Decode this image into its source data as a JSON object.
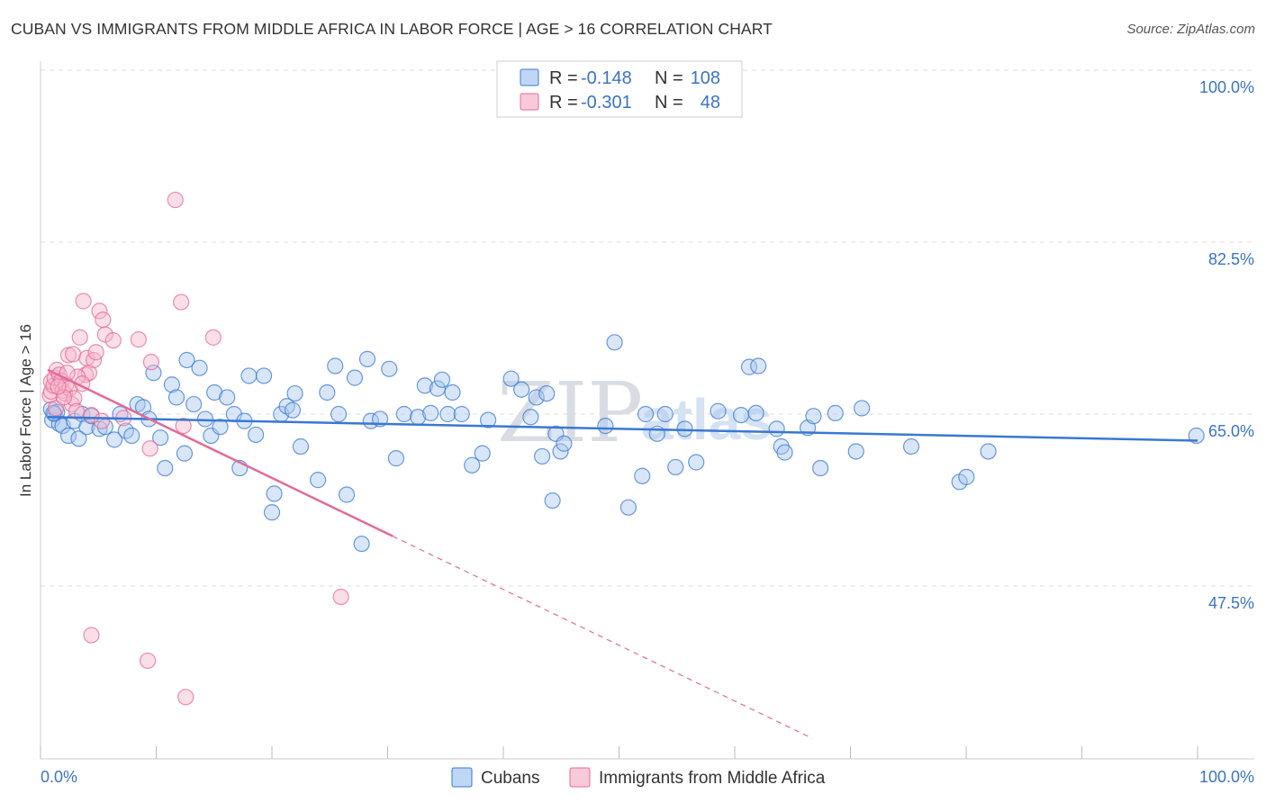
{
  "header": {
    "title": "CUBAN VS IMMIGRANTS FROM MIDDLE AFRICA IN LABOR FORCE | AGE > 16 CORRELATION CHART",
    "source": "Source: ZipAtlas.com"
  },
  "colors": {
    "blue": "#3a78d4",
    "blue_fill": "#a9c8f0",
    "pink": "#e46a96",
    "pink_fill": "#f6b7cb",
    "grid": "#dddddd",
    "axis_label": "#3b73c8"
  },
  "legend": {
    "r_label": "R =",
    "n_label": "N =",
    "rows": [
      {
        "r": "-0.148",
        "n": "108"
      },
      {
        "r": "-0.301",
        "n": "48"
      }
    ]
  },
  "watermark": {
    "zip": "ZIP",
    "atlas": "atlas"
  },
  "chart_data": {
    "type": "scatter",
    "title": "CUBAN VS IMMIGRANTS FROM MIDDLE AFRICA IN LABOR FORCE | AGE > 16 CORRELATION CHART",
    "xlabel": "",
    "ylabel": "In Labor Force | Age > 16",
    "xlim": [
      0,
      100
    ],
    "ylim": [
      32,
      102
    ],
    "x_tick_labels": [
      "0.0%",
      "100.0%"
    ],
    "y_ticks": [
      47.5,
      65.0,
      82.5,
      100.0
    ],
    "y_tick_labels": [
      "47.5%",
      "65.0%",
      "82.5%",
      "100.0%"
    ],
    "grid": true,
    "series": [
      {
        "name": "Cubans",
        "color": "#3a78d4",
        "r": -0.148,
        "n": 108,
        "trend": {
          "x0": 0.0,
          "y0": 64.7,
          "x1": 100.0,
          "y1": 62.3,
          "dashed_from": null
        },
        "points": [
          [
            0.3,
            65.5
          ],
          [
            0.4,
            64.4
          ],
          [
            0.6,
            65.0
          ],
          [
            0.8,
            65.2
          ],
          [
            1.0,
            64.0
          ],
          [
            1.3,
            63.8
          ],
          [
            1.8,
            62.8
          ],
          [
            2.3,
            64.3
          ],
          [
            2.7,
            62.5
          ],
          [
            3.0,
            65.0
          ],
          [
            3.4,
            63.7
          ],
          [
            3.8,
            64.8
          ],
          [
            4.5,
            63.5
          ],
          [
            5.0,
            63.7
          ],
          [
            5.8,
            62.4
          ],
          [
            6.3,
            65.0
          ],
          [
            6.8,
            63.3
          ],
          [
            7.3,
            62.8
          ],
          [
            7.8,
            66.0
          ],
          [
            8.3,
            65.7
          ],
          [
            8.8,
            64.5
          ],
          [
            9.2,
            69.2
          ],
          [
            9.8,
            62.6
          ],
          [
            10.2,
            59.5
          ],
          [
            10.8,
            68.0
          ],
          [
            11.2,
            66.7
          ],
          [
            11.9,
            61.0
          ],
          [
            12.1,
            70.5
          ],
          [
            12.7,
            66.0
          ],
          [
            13.2,
            69.7
          ],
          [
            13.7,
            64.5
          ],
          [
            14.2,
            62.8
          ],
          [
            14.5,
            67.2
          ],
          [
            15.0,
            63.7
          ],
          [
            15.6,
            66.7
          ],
          [
            16.2,
            65.0
          ],
          [
            16.7,
            59.5
          ],
          [
            17.1,
            64.3
          ],
          [
            17.5,
            68.9
          ],
          [
            18.1,
            62.9
          ],
          [
            18.8,
            68.9
          ],
          [
            19.5,
            55.0
          ],
          [
            19.7,
            56.9
          ],
          [
            20.3,
            65.0
          ],
          [
            20.8,
            65.8
          ],
          [
            21.3,
            65.4
          ],
          [
            21.5,
            67.1
          ],
          [
            22.0,
            61.7
          ],
          [
            23.5,
            58.3
          ],
          [
            24.3,
            67.2
          ],
          [
            25.0,
            69.9
          ],
          [
            25.3,
            65.0
          ],
          [
            26.0,
            56.8
          ],
          [
            26.7,
            68.7
          ],
          [
            27.3,
            51.8
          ],
          [
            27.8,
            70.6
          ],
          [
            28.1,
            64.3
          ],
          [
            28.9,
            64.5
          ],
          [
            29.7,
            69.6
          ],
          [
            30.3,
            60.5
          ],
          [
            31.0,
            65.0
          ],
          [
            32.2,
            64.7
          ],
          [
            32.8,
            67.9
          ],
          [
            33.3,
            65.1
          ],
          [
            33.9,
            67.6
          ],
          [
            34.3,
            68.5
          ],
          [
            34.8,
            65.0
          ],
          [
            35.2,
            67.2
          ],
          [
            36.0,
            65.0
          ],
          [
            36.9,
            59.8
          ],
          [
            37.8,
            61.0
          ],
          [
            38.3,
            64.4
          ],
          [
            40.3,
            68.6
          ],
          [
            41.2,
            67.5
          ],
          [
            42.0,
            64.7
          ],
          [
            42.5,
            66.7
          ],
          [
            43.0,
            60.7
          ],
          [
            43.4,
            67.1
          ],
          [
            43.9,
            56.2
          ],
          [
            44.2,
            63.0
          ],
          [
            44.6,
            61.2
          ],
          [
            44.9,
            62.0
          ],
          [
            48.5,
            63.8
          ],
          [
            49.3,
            72.3
          ],
          [
            50.5,
            55.5
          ],
          [
            51.7,
            58.7
          ],
          [
            52.0,
            65.0
          ],
          [
            53.0,
            63.0
          ],
          [
            53.7,
            65.0
          ],
          [
            54.6,
            59.6
          ],
          [
            55.4,
            63.5
          ],
          [
            56.4,
            60.1
          ],
          [
            58.3,
            65.3
          ],
          [
            60.3,
            64.9
          ],
          [
            61.0,
            69.8
          ],
          [
            61.6,
            65.1
          ],
          [
            61.8,
            69.9
          ],
          [
            63.4,
            63.5
          ],
          [
            63.8,
            61.7
          ],
          [
            64.1,
            61.1
          ],
          [
            66.1,
            63.6
          ],
          [
            66.6,
            64.8
          ],
          [
            67.2,
            59.5
          ],
          [
            68.5,
            65.1
          ],
          [
            70.3,
            61.2
          ],
          [
            70.8,
            65.6
          ],
          [
            75.1,
            61.7
          ],
          [
            79.3,
            58.1
          ],
          [
            79.9,
            58.6
          ],
          [
            81.8,
            61.2
          ],
          [
            99.9,
            62.8
          ],
          [
            0.5,
            65.1
          ]
        ]
      },
      {
        "name": "Immigrants from Middle Africa",
        "color": "#e46a96",
        "r": -0.301,
        "n": 48,
        "trend": {
          "x0": 0.0,
          "y0": 69.5,
          "x1": 100.0,
          "y1": 13.1,
          "solid_until": 30.0
        },
        "points": [
          [
            0.2,
            66.9
          ],
          [
            0.3,
            67.3
          ],
          [
            0.3,
            68.3
          ],
          [
            0.5,
            67.9
          ],
          [
            0.6,
            68.7
          ],
          [
            0.7,
            65.6
          ],
          [
            0.8,
            69.5
          ],
          [
            1.0,
            69.0
          ],
          [
            1.2,
            68.4
          ],
          [
            1.3,
            67.4
          ],
          [
            1.5,
            67.1
          ],
          [
            1.6,
            68.0
          ],
          [
            1.8,
            71.0
          ],
          [
            1.9,
            67.6
          ],
          [
            2.1,
            66.0
          ],
          [
            2.2,
            71.1
          ],
          [
            2.3,
            66.6
          ],
          [
            2.5,
            65.3
          ],
          [
            2.8,
            72.8
          ],
          [
            3.1,
            76.5
          ],
          [
            3.3,
            69.0
          ],
          [
            3.4,
            70.7
          ],
          [
            3.6,
            69.2
          ],
          [
            3.8,
            64.9
          ],
          [
            4.0,
            70.5
          ],
          [
            4.2,
            71.3
          ],
          [
            4.5,
            75.5
          ],
          [
            4.7,
            64.3
          ],
          [
            4.8,
            74.6
          ],
          [
            5.0,
            73.1
          ],
          [
            5.7,
            72.5
          ],
          [
            6.6,
            64.6
          ],
          [
            7.9,
            72.6
          ],
          [
            8.7,
            39.9
          ],
          [
            8.9,
            61.5
          ],
          [
            9.0,
            70.3
          ],
          [
            11.1,
            86.8
          ],
          [
            11.6,
            76.4
          ],
          [
            11.8,
            63.8
          ],
          [
            12.0,
            36.2
          ],
          [
            14.4,
            72.8
          ],
          [
            25.5,
            46.4
          ],
          [
            3.8,
            42.5
          ],
          [
            1.4,
            66.7
          ],
          [
            2.6,
            68.8
          ],
          [
            0.9,
            67.8
          ],
          [
            1.7,
            69.2
          ],
          [
            3.0,
            68.1
          ]
        ]
      }
    ]
  },
  "bottom_legend": {
    "items": [
      {
        "label": "Cubans"
      },
      {
        "label": "Immigrants from Middle Africa"
      }
    ]
  }
}
